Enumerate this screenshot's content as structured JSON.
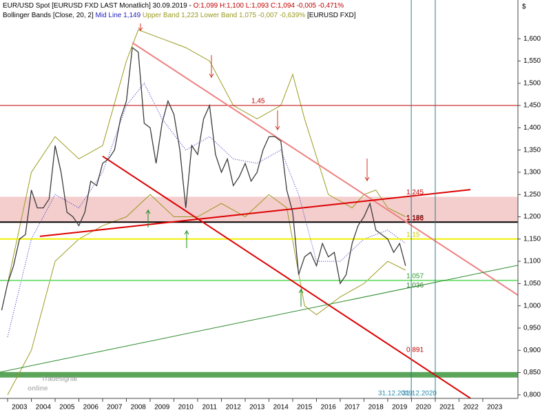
{
  "chart_data": {
    "type": "line",
    "header": {
      "line1": "EUR/USD Spot [EURUSD FXD LAST Monatlich] 30.09.2019 -",
      "ohlc": "O:1,099 H:1,100 L:1,093 C:1,094 -0,005 -0,471%",
      "indicator": "Bollinger Bands [Close, 20, 2]",
      "mid": "Mid Line 1,149",
      "bands": "Upper Band 1,223 Lower Band 1,075 -0,007 -0,639%",
      "symbol": "[EURUSD FXD]"
    },
    "axis_unit": "$",
    "watermark_small": "Tradesignal",
    "watermark": "online",
    "xlim": [
      2002.68,
      2024.48
    ],
    "xticks": [
      2003,
      2004,
      2005,
      2006,
      2007,
      2008,
      2009,
      2010,
      2011,
      2012,
      2013,
      2014,
      2015,
      2016,
      2017,
      2018,
      2019,
      2020,
      2021,
      2022,
      2023
    ],
    "ylim": [
      0.792,
      1.687
    ],
    "yticks": [
      {
        "value": 0.8,
        "label": "0,800"
      },
      {
        "value": 0.85,
        "label": "0,850"
      },
      {
        "value": 0.9,
        "label": "0,900"
      },
      {
        "value": 0.95,
        "label": "0,950"
      },
      {
        "value": 1.0,
        "label": "1,000"
      },
      {
        "value": 1.05,
        "label": "1,050"
      },
      {
        "value": 1.1,
        "label": "1,100"
      },
      {
        "value": 1.15,
        "label": "1,150"
      },
      {
        "value": 1.2,
        "label": "1,200"
      },
      {
        "value": 1.25,
        "label": "1,250"
      },
      {
        "value": 1.3,
        "label": "1,300"
      },
      {
        "value": 1.35,
        "label": "1,350"
      },
      {
        "value": 1.4,
        "label": "1,400"
      },
      {
        "value": 1.45,
        "label": "1,450"
      },
      {
        "value": 1.5,
        "label": "1,500"
      },
      {
        "value": 1.55,
        "label": "1,550"
      },
      {
        "value": 1.6,
        "label": "1,600"
      }
    ],
    "grid": false,
    "color": "#3a3a3a",
    "x": [
      2002.75,
      2003.0,
      2003.25,
      2003.5,
      2003.75,
      2004.0,
      2004.25,
      2004.5,
      2004.75,
      2005.0,
      2005.25,
      2005.5,
      2005.75,
      2006.0,
      2006.25,
      2006.5,
      2006.75,
      2007.0,
      2007.25,
      2007.5,
      2007.75,
      2008.0,
      2008.25,
      2008.5,
      2008.75,
      2009.0,
      2009.25,
      2009.5,
      2009.75,
      2010.0,
      2010.25,
      2010.5,
      2010.75,
      2011.0,
      2011.25,
      2011.5,
      2011.75,
      2012.0,
      2012.25,
      2012.5,
      2012.75,
      2013.0,
      2013.25,
      2013.5,
      2013.75,
      2014.0,
      2014.25,
      2014.5,
      2014.75,
      2015.0,
      2015.25,
      2015.5,
      2015.75,
      2016.0,
      2016.25,
      2016.5,
      2016.75,
      2017.0,
      2017.25,
      2017.5,
      2017.75,
      2018.0,
      2018.25,
      2018.5,
      2018.75,
      2019.0,
      2019.25,
      2019.5,
      2019.75
    ],
    "values": [
      0.99,
      1.05,
      1.09,
      1.15,
      1.16,
      1.26,
      1.22,
      1.22,
      1.24,
      1.36,
      1.3,
      1.21,
      1.2,
      1.18,
      1.21,
      1.28,
      1.27,
      1.32,
      1.33,
      1.35,
      1.42,
      1.46,
      1.58,
      1.57,
      1.41,
      1.4,
      1.32,
      1.41,
      1.46,
      1.43,
      1.35,
      1.22,
      1.36,
      1.34,
      1.42,
      1.45,
      1.34,
      1.3,
      1.33,
      1.27,
      1.29,
      1.32,
      1.28,
      1.3,
      1.35,
      1.38,
      1.38,
      1.37,
      1.26,
      1.21,
      1.07,
      1.11,
      1.12,
      1.09,
      1.14,
      1.11,
      1.12,
      1.05,
      1.07,
      1.14,
      1.18,
      1.2,
      1.23,
      1.17,
      1.16,
      1.15,
      1.12,
      1.14,
      1.09
    ],
    "bands": [
      {
        "color": "#9a9a20",
        "x": [
          2003.0,
          2004.0,
          2005.0,
          2006.0,
          2007.0,
          2008.0,
          2008.5,
          2009.5,
          2010.5,
          2011.5,
          2012.5,
          2013.5,
          2014.5,
          2015.0,
          2015.5,
          2016.5,
          2017.5,
          2018.0,
          2018.5,
          2019.0,
          2019.75
        ],
        "values": [
          1.05,
          1.3,
          1.38,
          1.33,
          1.36,
          1.55,
          1.62,
          1.6,
          1.58,
          1.55,
          1.45,
          1.42,
          1.45,
          1.52,
          1.42,
          1.25,
          1.22,
          1.25,
          1.26,
          1.22,
          1.2
        ]
      },
      {
        "color": "#9a9a20",
        "x": [
          2003.0,
          2004.0,
          2005.0,
          2006.0,
          2007.0,
          2008.0,
          2009.0,
          2010.0,
          2011.0,
          2012.0,
          2013.0,
          2014.0,
          2014.75,
          2015.5,
          2016.0,
          2017.0,
          2018.0,
          2019.0,
          2019.75
        ],
        "values": [
          0.8,
          0.9,
          1.1,
          1.15,
          1.18,
          1.2,
          1.25,
          1.2,
          1.2,
          1.23,
          1.2,
          1.25,
          1.22,
          1.0,
          0.98,
          1.02,
          1.05,
          1.1,
          1.08
        ]
      },
      {
        "color": "#2020c0",
        "dashed": true,
        "x": [
          2003.0,
          2004.0,
          2005.0,
          2006.0,
          2007.0,
          2008.0,
          2008.75,
          2009.5,
          2010.5,
          2011.5,
          2012.5,
          2013.5,
          2014.5,
          2015.25,
          2016.0,
          2017.0,
          2018.0,
          2019.0,
          2019.75
        ],
        "values": [
          0.93,
          1.15,
          1.25,
          1.22,
          1.3,
          1.45,
          1.5,
          1.42,
          1.35,
          1.38,
          1.33,
          1.32,
          1.35,
          1.25,
          1.1,
          1.1,
          1.15,
          1.17,
          1.14
        ]
      }
    ],
    "zone": {
      "from": 1.188,
      "to": 1.245,
      "color": "#f2c4c4"
    },
    "levels": [
      {
        "label": "1,45",
        "value": 1.45,
        "color": "#c00000"
      },
      {
        "label": "1,188",
        "value": 1.188,
        "color": "#000000"
      },
      {
        "label": "1,15",
        "value": 1.15,
        "color": "#f0f000"
      },
      {
        "label": "1,057",
        "value": 1.057,
        "color": "#7de07d"
      }
    ],
    "band_level": {
      "value": 0.845,
      "color": "#5aa55a"
    },
    "annotations": [
      {
        "label": "1,245",
        "value": 1.245,
        "color": "#c00000"
      },
      {
        "label": "1,186",
        "value": 1.186,
        "color": "#c00000"
      },
      {
        "label": "1,036",
        "value": 1.036,
        "color": "#2a7a2a"
      },
      {
        "label": "0,891",
        "value": 0.891,
        "color": "#c00000"
      }
    ],
    "trendlines": [
      {
        "color": "#ee8080",
        "width": 2,
        "x": [
          2008.25,
          2024.48
        ],
        "values": [
          1.591,
          1.024
        ]
      },
      {
        "color": "#dd0000",
        "width": 2,
        "x": [
          2007.0,
          2024.48
        ],
        "values": [
          1.336,
          0.722
        ]
      },
      {
        "color": "#dd0000",
        "width": 2,
        "x": [
          2004.36,
          2022.48
        ],
        "values": [
          1.156,
          1.261
        ]
      },
      {
        "color": "#2a8a2a",
        "width": 1,
        "x": [
          2002.68,
          2024.48
        ],
        "values": [
          0.851,
          1.091
        ]
      }
    ],
    "verticals": [
      {
        "x": 2019.99,
        "label": "31.12.2019"
      },
      {
        "x": 2021.0,
        "label": "31.12.2020"
      }
    ]
  }
}
